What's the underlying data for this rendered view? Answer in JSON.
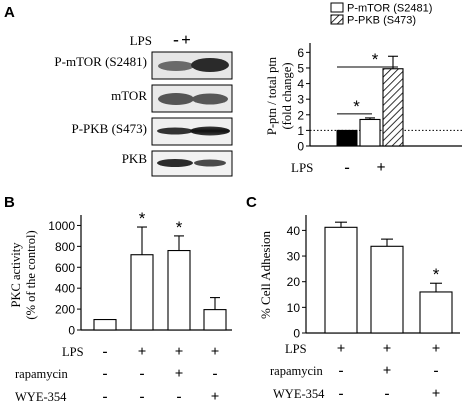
{
  "panels": {
    "A": "A",
    "B": "B",
    "C": "C"
  },
  "blot": {
    "lps_label": "LPS",
    "lps_signs": [
      "-",
      "+"
    ],
    "rows": [
      "P-mTOR (S2481)",
      "mTOR",
      "P-PKB (S473)",
      "PKB"
    ]
  },
  "chart_data": [
    {
      "panel": "A",
      "type": "bar",
      "ylabel": "P-ptn / total ptn (fold change)",
      "ylabel_lines": [
        "P-ptn / total ptn",
        "(fold change)"
      ],
      "yticks": [
        0,
        1,
        2,
        3,
        4,
        5,
        6
      ],
      "ylim": [
        0,
        6.6
      ],
      "reference_line": 1,
      "legend": [
        "P-mTOR (S2481)",
        "P-PKB (S473)"
      ],
      "legend_position": "top-right",
      "xrow_label": "LPS",
      "xrow_signs": [
        "-",
        "+"
      ],
      "control": {
        "value": 1.0
      },
      "series": [
        {
          "name": "P-mTOR (S2481)",
          "value": 1.7,
          "error": 0.1
        },
        {
          "name": "P-PKB (S473)",
          "value": 4.95,
          "error": 0.8
        }
      ],
      "significance": [
        "*",
        "*"
      ]
    },
    {
      "panel": "B",
      "type": "bar",
      "ylabel": "PKC activity (% of the control)",
      "ylabel_lines": [
        "PKC activity",
        "(% of the control)"
      ],
      "yticks": [
        0,
        200,
        400,
        600,
        800,
        1000
      ],
      "ylim": [
        0,
        1100
      ],
      "values": [
        100,
        720,
        760,
        195
      ],
      "errors": [
        0,
        265,
        140,
        115
      ],
      "significance": [
        "",
        "*",
        "*",
        ""
      ],
      "conditions": [
        {
          "label": "LPS",
          "signs": [
            "-",
            "+",
            "+",
            "+"
          ]
        },
        {
          "label": "rapamycin",
          "signs": [
            "-",
            "-",
            "+",
            "-"
          ]
        },
        {
          "label": "WYE-354",
          "signs": [
            "-",
            "-",
            "-",
            "+"
          ]
        }
      ]
    },
    {
      "panel": "C",
      "type": "bar",
      "ylabel": "% Cell Adhesion",
      "yticks": [
        0,
        10,
        20,
        30,
        40
      ],
      "ylim": [
        0,
        46
      ],
      "values": [
        41.2,
        33.8,
        16.0
      ],
      "errors": [
        2.0,
        2.8,
        3.4
      ],
      "significance": [
        "",
        "",
        "*"
      ],
      "conditions": [
        {
          "label": "LPS",
          "signs": [
            "+",
            "+",
            "+"
          ]
        },
        {
          "label": "rapamycin",
          "signs": [
            "-",
            "+",
            "-"
          ]
        },
        {
          "label": "WYE-354",
          "signs": [
            "-",
            "-",
            "+"
          ]
        }
      ]
    }
  ]
}
